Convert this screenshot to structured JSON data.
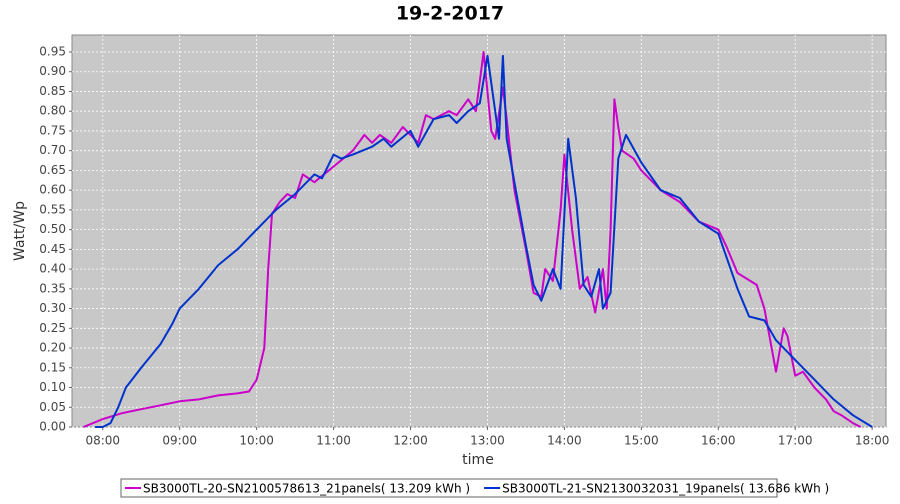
{
  "chart_data": {
    "type": "line",
    "title": "19-2-2017",
    "x_label": "time",
    "y_label": "Watt/Wp",
    "xlim": [
      7.6,
      18.18
    ],
    "ylim": [
      0,
      0.993
    ],
    "grid": true,
    "legend": "bottom",
    "xticks": [
      {
        "value": 8,
        "label": "08:00"
      },
      {
        "value": 9,
        "label": "09:00"
      },
      {
        "value": 10,
        "label": "10:00"
      },
      {
        "value": 11,
        "label": "11:00"
      },
      {
        "value": 12,
        "label": "12:00"
      },
      {
        "value": 13,
        "label": "13:00"
      },
      {
        "value": 14,
        "label": "14:00"
      },
      {
        "value": 15,
        "label": "15:00"
      },
      {
        "value": 16,
        "label": "16:00"
      },
      {
        "value": 17,
        "label": "17:00"
      },
      {
        "value": 18,
        "label": "18:00"
      }
    ],
    "yticks": [
      {
        "value": 0,
        "label": "0.00"
      },
      {
        "value": 0.05,
        "label": "0.05"
      },
      {
        "value": 0.1,
        "label": "0.10"
      },
      {
        "value": 0.15,
        "label": "0.15"
      },
      {
        "value": 0.2,
        "label": "0.20"
      },
      {
        "value": 0.25,
        "label": "0.25"
      },
      {
        "value": 0.3,
        "label": "0.30"
      },
      {
        "value": 0.35,
        "label": "0.35"
      },
      {
        "value": 0.4,
        "label": "0.40"
      },
      {
        "value": 0.45,
        "label": "0.45"
      },
      {
        "value": 0.5,
        "label": "0.50"
      },
      {
        "value": 0.55,
        "label": "0.55"
      },
      {
        "value": 0.6,
        "label": "0.60"
      },
      {
        "value": 0.65,
        "label": "0.65"
      },
      {
        "value": 0.7,
        "label": "0.70"
      },
      {
        "value": 0.75,
        "label": "0.75"
      },
      {
        "value": 0.8,
        "label": "0.80"
      },
      {
        "value": 0.85,
        "label": "0.85"
      },
      {
        "value": 0.9,
        "label": "0.90"
      },
      {
        "value": 0.95,
        "label": "0.95"
      }
    ],
    "series": [
      {
        "name": "SB3000TL-20-SN2100578613_21panels( 13.209 kWh )",
        "color": "#cc00cc",
        "x": [
          7.75,
          8.0,
          8.25,
          8.5,
          8.75,
          9.0,
          9.25,
          9.5,
          9.75,
          9.9,
          10.0,
          10.1,
          10.15,
          10.2,
          10.3,
          10.4,
          10.5,
          10.6,
          10.75,
          11.0,
          11.25,
          11.4,
          11.5,
          11.6,
          11.75,
          11.9,
          12.0,
          12.1,
          12.2,
          12.3,
          12.5,
          12.6,
          12.75,
          12.85,
          12.95,
          13.05,
          13.1,
          13.2,
          13.25,
          13.35,
          13.5,
          13.6,
          13.7,
          13.75,
          13.85,
          13.95,
          14.0,
          14.1,
          14.2,
          14.3,
          14.4,
          14.5,
          14.55,
          14.6,
          14.65,
          14.7,
          14.75,
          14.9,
          15.0,
          15.25,
          15.5,
          15.75,
          16.0,
          16.1,
          16.25,
          16.5,
          16.6,
          16.75,
          16.85,
          16.9,
          17.0,
          17.1,
          17.25,
          17.4,
          17.5,
          17.6,
          17.75,
          17.85
        ],
        "values": [
          0.0,
          0.02,
          0.035,
          0.045,
          0.055,
          0.065,
          0.07,
          0.08,
          0.085,
          0.09,
          0.12,
          0.2,
          0.4,
          0.54,
          0.57,
          0.59,
          0.58,
          0.64,
          0.62,
          0.66,
          0.7,
          0.74,
          0.72,
          0.74,
          0.72,
          0.76,
          0.74,
          0.72,
          0.79,
          0.78,
          0.8,
          0.79,
          0.83,
          0.8,
          0.95,
          0.75,
          0.73,
          0.86,
          0.78,
          0.6,
          0.45,
          0.34,
          0.33,
          0.4,
          0.37,
          0.55,
          0.69,
          0.5,
          0.35,
          0.38,
          0.29,
          0.4,
          0.3,
          0.5,
          0.83,
          0.76,
          0.7,
          0.68,
          0.65,
          0.6,
          0.57,
          0.52,
          0.5,
          0.46,
          0.39,
          0.36,
          0.3,
          0.14,
          0.25,
          0.23,
          0.13,
          0.14,
          0.1,
          0.07,
          0.04,
          0.03,
          0.01,
          0.0
        ]
      },
      {
        "name": "SB3000TL-21-SN2130032031_19panels( 13.686 kWh )",
        "color": "#0033cc",
        "x": [
          7.9,
          8.0,
          8.1,
          8.2,
          8.3,
          8.5,
          8.75,
          8.9,
          9.0,
          9.25,
          9.5,
          9.75,
          10.0,
          10.25,
          10.5,
          10.75,
          10.85,
          11.0,
          11.1,
          11.25,
          11.5,
          11.65,
          11.75,
          12.0,
          12.1,
          12.3,
          12.5,
          12.6,
          12.75,
          12.9,
          13.0,
          13.1,
          13.15,
          13.2,
          13.25,
          13.35,
          13.5,
          13.6,
          13.7,
          13.85,
          13.95,
          14.05,
          14.15,
          14.25,
          14.35,
          14.45,
          14.5,
          14.6,
          14.7,
          14.8,
          15.0,
          15.25,
          15.5,
          15.75,
          16.0,
          16.25,
          16.4,
          16.6,
          16.75,
          17.0,
          17.25,
          17.5,
          17.75,
          18.0
        ],
        "values": [
          0.0,
          0.0,
          0.01,
          0.05,
          0.1,
          0.15,
          0.21,
          0.26,
          0.3,
          0.35,
          0.41,
          0.45,
          0.5,
          0.55,
          0.59,
          0.64,
          0.63,
          0.69,
          0.68,
          0.69,
          0.71,
          0.73,
          0.71,
          0.75,
          0.71,
          0.78,
          0.79,
          0.77,
          0.8,
          0.82,
          0.94,
          0.8,
          0.73,
          0.94,
          0.73,
          0.62,
          0.46,
          0.36,
          0.32,
          0.4,
          0.35,
          0.73,
          0.58,
          0.36,
          0.33,
          0.4,
          0.3,
          0.34,
          0.68,
          0.74,
          0.67,
          0.6,
          0.58,
          0.52,
          0.49,
          0.35,
          0.28,
          0.27,
          0.22,
          0.17,
          0.12,
          0.07,
          0.03,
          0.0
        ]
      }
    ]
  }
}
